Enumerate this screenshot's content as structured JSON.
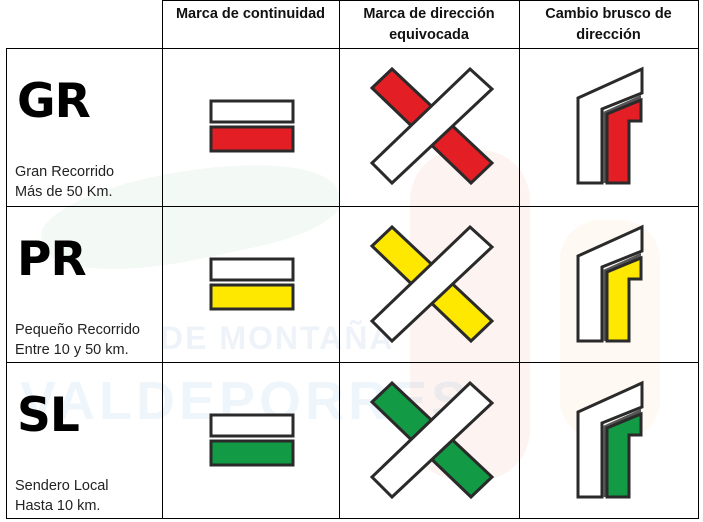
{
  "header": {
    "columns": [
      "Marca de continuidad",
      "Marca de dirección equivocada",
      "Cambio brusco de dirección"
    ]
  },
  "rows": [
    {
      "code": "GR",
      "name": "Gran Recorrido",
      "distance": "Más de 50 Km.",
      "color": "#e31e24"
    },
    {
      "code": "PR",
      "name": "Pequeño Recorrido",
      "distance": "Entre 10 y 50 km.",
      "color": "#ffe800"
    },
    {
      "code": "SL",
      "name": "Sendero Local",
      "distance": "Hasta 10 km.",
      "color": "#139a45"
    }
  ],
  "watermark": {
    "line1": "DE MONTAÑA",
    "line2": "VALDEPORRES"
  },
  "colors": {
    "outline": "#2a2a2a",
    "white_band": "#ffffff",
    "border": "#000000"
  }
}
